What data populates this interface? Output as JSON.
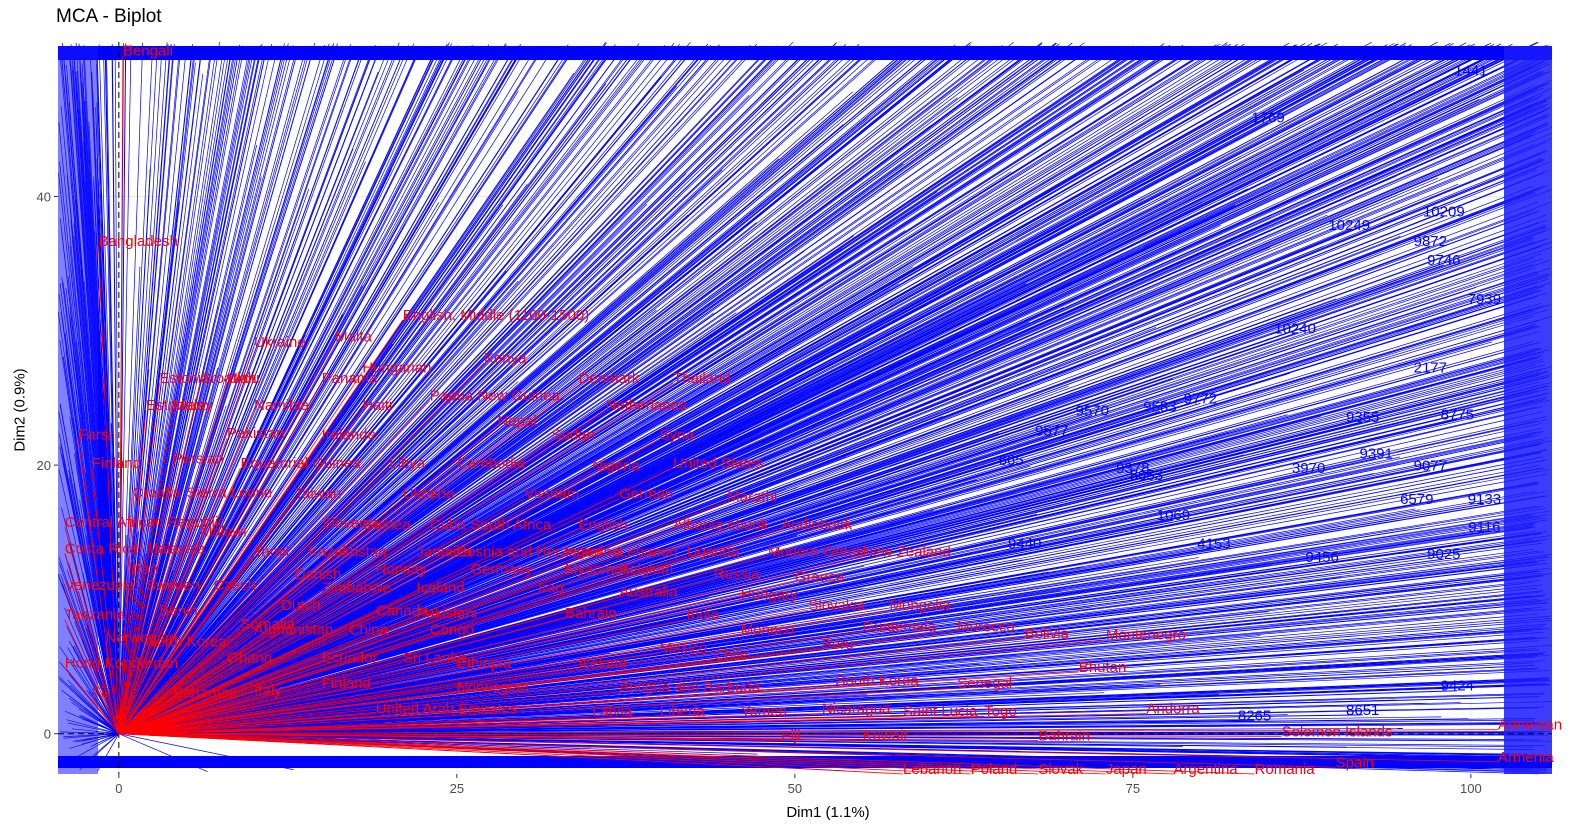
{
  "chart_data": {
    "type": "scatter",
    "title": "MCA - Biplot",
    "xlabel": "Dim1 (1.1%)",
    "ylabel": "Dim2 (0.9%)",
    "xlim": [
      -4.5,
      106
    ],
    "ylim": [
      -3,
      51.5
    ],
    "x_ticks": [
      0,
      25,
      50,
      75,
      100
    ],
    "y_ticks": [
      0,
      20,
      40
    ],
    "grid": true,
    "reference_lines": {
      "x": 0,
      "y": 0,
      "style": "dashed"
    },
    "individuals": {
      "name": "individuals",
      "color": "#0000ff",
      "points": [
        {
          "label": "1441",
          "x": 100,
          "y": 49.0
        },
        {
          "label": "1769",
          "x": 85,
          "y": 45.5
        },
        {
          "label": "10209",
          "x": 98,
          "y": 38.5
        },
        {
          "label": "9872",
          "x": 97,
          "y": 36.3
        },
        {
          "label": "9746",
          "x": 98,
          "y": 34.9
        },
        {
          "label": "7939",
          "x": 101,
          "y": 32.0
        },
        {
          "label": "10240",
          "x": 87,
          "y": 29.8
        },
        {
          "label": "2177",
          "x": 97,
          "y": 26.9
        },
        {
          "label": "9772",
          "x": 80,
          "y": 24.6
        },
        {
          "label": "8775",
          "x": 99,
          "y": 23.4
        },
        {
          "label": "9355",
          "x": 92,
          "y": 23.2
        },
        {
          "label": "9391",
          "x": 93,
          "y": 20.5
        },
        {
          "label": "9077",
          "x": 97,
          "y": 19.6
        },
        {
          "label": "6579",
          "x": 96,
          "y": 17.1
        },
        {
          "label": "9133",
          "x": 101,
          "y": 17.1
        },
        {
          "label": "9116",
          "x": 101,
          "y": 15.0
        },
        {
          "label": "1069",
          "x": 78,
          "y": 15.9
        },
        {
          "label": "4153",
          "x": 81,
          "y": 13.8
        },
        {
          "label": "9456",
          "x": 89,
          "y": 12.8
        },
        {
          "label": "9570",
          "x": 72,
          "y": 23.7
        },
        {
          "label": "9583",
          "x": 77,
          "y": 24.0
        },
        {
          "label": "9577",
          "x": 69,
          "y": 22.2
        },
        {
          "label": "8653",
          "x": 76,
          "y": 18.9
        },
        {
          "label": "9378",
          "x": 75,
          "y": 19.4
        },
        {
          "label": "665",
          "x": 66,
          "y": 20.0
        },
        {
          "label": "9440",
          "x": 67,
          "y": 13.8
        },
        {
          "label": "10249",
          "x": 91,
          "y": 37.5
        },
        {
          "label": "3970",
          "x": 88,
          "y": 19.4
        },
        {
          "label": "8651",
          "x": 92,
          "y": 1.4
        },
        {
          "label": "8265",
          "x": 84,
          "y": 1.0
        },
        {
          "label": "9424",
          "x": 99,
          "y": 3.2
        },
        {
          "label": "9025",
          "x": 98,
          "y": 13.0
        }
      ]
    },
    "variables": {
      "name": "variables",
      "color": "#ff0000",
      "points": [
        {
          "label": "Bengali",
          "x": 0.3,
          "y": 50.5
        },
        {
          "label": "Bangladesh",
          "x": -1.5,
          "y": 36.3
        },
        {
          "label": "English, Middle (1100-1500)",
          "x": 21,
          "y": 30.8
        },
        {
          "label": "Ukraine",
          "x": 10,
          "y": 28.8
        },
        {
          "label": "Malta",
          "x": 16,
          "y": 29.2
        },
        {
          "label": "Kenya",
          "x": 27,
          "y": 27.6
        },
        {
          "label": "Urdu",
          "x": 8,
          "y": 26.1
        },
        {
          "label": "Estonia",
          "x": 3,
          "y": 26.1
        },
        {
          "label": "Croatian",
          "x": 6,
          "y": 26.1
        },
        {
          "label": "Panama",
          "x": 15,
          "y": 26.1
        },
        {
          "label": "Hungarian",
          "x": 18,
          "y": 26.9
        },
        {
          "label": "Denmark",
          "x": 34,
          "y": 26.1
        },
        {
          "label": "Thailand",
          "x": 41,
          "y": 26.1
        },
        {
          "label": "Estonian",
          "x": 2,
          "y": 24.1
        },
        {
          "label": "Malay",
          "x": 4,
          "y": 24.1
        },
        {
          "label": "Namibia",
          "x": 10,
          "y": 24.1
        },
        {
          "label": "Haiti",
          "x": 18,
          "y": 24.1
        },
        {
          "label": "Papua New Guinea",
          "x": 23,
          "y": 24.8
        },
        {
          "label": "Netherlands",
          "x": 36,
          "y": 24.1
        },
        {
          "label": "Nepal",
          "x": 28,
          "y": 22.9
        },
        {
          "label": "Farsi",
          "x": -3,
          "y": 21.9
        },
        {
          "label": "Pakistan",
          "x": 8,
          "y": 22.0
        },
        {
          "label": "Irelande",
          "x": 15,
          "y": 21.9
        },
        {
          "label": "Sudan",
          "x": 32,
          "y": 21.9
        },
        {
          "label": "Syria",
          "x": 40,
          "y": 21.9
        },
        {
          "label": "Finland",
          "x": -2,
          "y": 19.8
        },
        {
          "label": "Persian",
          "x": 4,
          "y": 20.1
        },
        {
          "label": "Equatorial Guinea",
          "x": 9,
          "y": 19.8
        },
        {
          "label": "Libya",
          "x": 20,
          "y": 19.8
        },
        {
          "label": "Cambodia",
          "x": 25,
          "y": 19.8
        },
        {
          "label": "Nigeria",
          "x": 35,
          "y": 19.6
        },
        {
          "label": "United States",
          "x": 41,
          "y": 19.8
        },
        {
          "label": "Croatia",
          "x": 1,
          "y": 17.6
        },
        {
          "label": "Sierra Leone",
          "x": 5,
          "y": 17.6
        },
        {
          "label": "Taiwan",
          "x": 13,
          "y": 17.5
        },
        {
          "label": "Ukraine",
          "x": 21,
          "y": 17.5
        },
        {
          "label": "Vietnam",
          "x": 30,
          "y": 17.5
        },
        {
          "label": "German",
          "x": 37,
          "y": 17.5
        },
        {
          "label": "Marathi",
          "x": 45,
          "y": 17.3
        },
        {
          "label": "Central African Republic",
          "x": -4,
          "y": 15.4
        },
        {
          "label": "Slovenia",
          "x": 15,
          "y": 15.3
        },
        {
          "label": "Guinea",
          "x": 18,
          "y": 15.2
        },
        {
          "label": "Cuba",
          "x": 23,
          "y": 15.2
        },
        {
          "label": "South Africa",
          "x": 26,
          "y": 15.2
        },
        {
          "label": "English",
          "x": 34,
          "y": 15.2
        },
        {
          "label": "Albania",
          "x": 41,
          "y": 15.2
        },
        {
          "label": "ebook",
          "x": 45,
          "y": 15.2
        },
        {
          "label": "Audiobook",
          "x": 49,
          "y": 15.2
        },
        {
          "label": "Malawi",
          "x": 6,
          "y": 14.7
        },
        {
          "label": "Costa Rica",
          "x": -4,
          "y": 13.4
        },
        {
          "label": "Malaysia",
          "x": 2,
          "y": 13.4
        },
        {
          "label": "Tamil",
          "x": 10,
          "y": 13.2
        },
        {
          "label": "Kazakhstan",
          "x": 14,
          "y": 13.2
        },
        {
          "label": "Jamaica",
          "x": 22,
          "y": 13.2
        },
        {
          "label": "Bosnia and Herzegovina",
          "x": 25,
          "y": 13.2
        },
        {
          "label": "Israel",
          "x": 33,
          "y": 13.2
        },
        {
          "label": "Lebanon",
          "x": 37,
          "y": 13.2
        },
        {
          "label": "Uganda",
          "x": 42,
          "y": 13.2
        },
        {
          "label": "Modern Greek",
          "x": 48,
          "y": 13.2
        },
        {
          "label": "New Zealand",
          "x": 55,
          "y": 13.2
        },
        {
          "label": "Iran",
          "x": 1,
          "y": 11.9
        },
        {
          "label": "Danish",
          "x": 13,
          "y": 11.5
        },
        {
          "label": "Norway",
          "x": 19,
          "y": 11.9
        },
        {
          "label": "Germany",
          "x": 26,
          "y": 11.9
        },
        {
          "label": "Myanmar",
          "x": 33,
          "y": 11.9
        },
        {
          "label": "Belgium",
          "x": 37,
          "y": 11.9
        },
        {
          "label": "Russia",
          "x": 44,
          "y": 11.5
        },
        {
          "label": "Greece",
          "x": 50,
          "y": 11.3
        },
        {
          "label": "Venezuela",
          "x": -4,
          "y": 10.7
        },
        {
          "label": "Sweden",
          "x": 2,
          "y": 10.7
        },
        {
          "label": "Czech",
          "x": 7,
          "y": 10.7
        },
        {
          "label": "Zimbabwe",
          "x": 15,
          "y": 10.5
        },
        {
          "label": "Iceland",
          "x": 22,
          "y": 10.5
        },
        {
          "label": "Iraq",
          "x": 31,
          "y": 10.5
        },
        {
          "label": "Australia",
          "x": 37,
          "y": 10.2
        },
        {
          "label": "Hungary",
          "x": 46,
          "y": 10.0
        },
        {
          "label": "Dutch",
          "x": 12,
          "y": 9.2
        },
        {
          "label": "Canada",
          "x": 19,
          "y": 8.8
        },
        {
          "label": "Pakistani",
          "x": 22,
          "y": 8.6
        },
        {
          "label": "Slovakia",
          "x": 51,
          "y": 9.2
        },
        {
          "label": "Mongolia",
          "x": 57,
          "y": 9.2
        },
        {
          "label": "Tanzania",
          "x": -4,
          "y": 8.5
        },
        {
          "label": "Benin",
          "x": 3,
          "y": 8.8
        },
        {
          "label": "Somalia",
          "x": 9,
          "y": 7.8
        },
        {
          "label": "Bahrain",
          "x": 33,
          "y": 8.6
        },
        {
          "label": "India",
          "x": 42,
          "y": 8.5
        },
        {
          "label": "Afghanistan",
          "x": 10,
          "y": 7.4
        },
        {
          "label": "China",
          "x": 17,
          "y": 7.4
        },
        {
          "label": "Congo",
          "x": 23,
          "y": 7.4
        },
        {
          "label": "Monaco",
          "x": 46,
          "y": 7.4
        },
        {
          "label": "Guatemala",
          "x": 55,
          "y": 7.6
        },
        {
          "label": "Morocco",
          "x": 62,
          "y": 7.6
        },
        {
          "label": "Bolivia",
          "x": 67,
          "y": 7.1
        },
        {
          "label": "Montenegro",
          "x": 73,
          "y": 7.0
        },
        {
          "label": "Norwegian",
          "x": -1,
          "y": 6.8
        },
        {
          "label": "North Korea",
          "x": 2,
          "y": 6.5
        },
        {
          "label": "Peru",
          "x": 52,
          "y": 6.3
        },
        {
          "label": "Ghana",
          "x": 8,
          "y": 5.3
        },
        {
          "label": "Ecuador",
          "x": 15,
          "y": 5.3
        },
        {
          "label": "Sri Lanka",
          "x": 21,
          "y": 5.3
        },
        {
          "label": "Mexico",
          "x": 40,
          "y": 6.0
        },
        {
          "label": "Chile",
          "x": 44,
          "y": 5.5
        },
        {
          "label": "Hong Kong",
          "x": -4,
          "y": 4.9
        },
        {
          "label": "Jordan",
          "x": 1,
          "y": 4.9
        },
        {
          "label": "Ethiopia",
          "x": 25,
          "y": 4.9
        },
        {
          "label": "Iceland",
          "x": 34,
          "y": 4.9
        },
        {
          "label": "Bhutan",
          "x": 71,
          "y": 4.6
        },
        {
          "label": "Fiji",
          "x": -2,
          "y": 2.7
        },
        {
          "label": "Bahamas",
          "x": 4,
          "y": 2.7
        },
        {
          "label": "Italy",
          "x": 10,
          "y": 2.9
        },
        {
          "label": "Finland",
          "x": 15,
          "y": 3.4
        },
        {
          "label": "Norwegian",
          "x": 25,
          "y": 3.1
        },
        {
          "label": "Antigua and Barbuda",
          "x": 37,
          "y": 3.1
        },
        {
          "label": "South Korea",
          "x": 53,
          "y": 3.6
        },
        {
          "label": "Senegal",
          "x": 62,
          "y": 3.4
        },
        {
          "label": "United Arab Emirates",
          "x": 19,
          "y": 1.5
        },
        {
          "label": "Latvia",
          "x": 35,
          "y": 1.3
        },
        {
          "label": "Liberia",
          "x": 40,
          "y": 1.3
        },
        {
          "label": "Yemen",
          "x": 46,
          "y": 1.3
        },
        {
          "label": "Nicaragua",
          "x": 52,
          "y": 1.5
        },
        {
          "label": "Saint Lucia",
          "x": 58,
          "y": 1.3
        },
        {
          "label": "Togo",
          "x": 64,
          "y": 1.3
        },
        {
          "label": "Andorra",
          "x": 76,
          "y": 1.5
        },
        {
          "label": "Armenian",
          "x": 102,
          "y": 0.3
        },
        {
          "label": "Solomon Islands",
          "x": 86,
          "y": -0.2
        },
        {
          "label": "Bahrain",
          "x": 68,
          "y": -0.5
        },
        {
          "label": "Fiji",
          "x": 49,
          "y": -0.5
        },
        {
          "label": "Kuwait",
          "x": 55,
          "y": -0.5
        },
        {
          "label": "Armenia",
          "x": 102,
          "y": -2.1
        },
        {
          "label": "Spain",
          "x": 90,
          "y": -2.5
        },
        {
          "label": "Romania",
          "x": 84,
          "y": -3.0
        },
        {
          "label": "Argentina",
          "x": 78,
          "y": -3.0
        },
        {
          "label": "Japan",
          "x": 73,
          "y": -3.0
        },
        {
          "label": "Slovak",
          "x": 68,
          "y": -3.0
        },
        {
          "label": "Poland",
          "x": 63,
          "y": -3.0
        },
        {
          "label": "Lebanon",
          "x": 58,
          "y": -3.0
        }
      ]
    }
  }
}
